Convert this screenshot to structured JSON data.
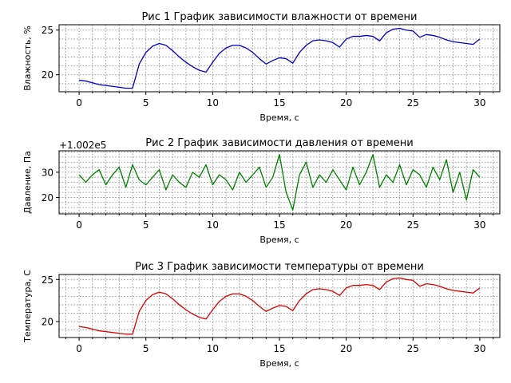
{
  "chart_data": [
    {
      "type": "line",
      "title": "Рис 1 График зависимости влажности от времени",
      "xlabel": "Время, с",
      "ylabel": "Влажность, %",
      "xlim": [
        -1.5,
        31.5
      ],
      "ylim": [
        18.1,
        25.6
      ],
      "xticks": [
        0,
        5,
        10,
        15,
        20,
        25,
        30
      ],
      "yticks": [
        20,
        25
      ],
      "grid": true,
      "color": "#0000cc",
      "series": [
        {
          "x": [
            0,
            0.5,
            1,
            1.5,
            2,
            2.5,
            3,
            3.5,
            4,
            4.5,
            5,
            5.5,
            6,
            6.5,
            7,
            7.5,
            8,
            8.5,
            9,
            9.5,
            10,
            10.5,
            11,
            11.5,
            12,
            12.5,
            13,
            13.5,
            14,
            14.5,
            15,
            15.5,
            16,
            16.5,
            17,
            17.5,
            18,
            18.5,
            19,
            19.5,
            20,
            20.5,
            21,
            21.5,
            22,
            22.5,
            23,
            23.5,
            24,
            24.5,
            25,
            25.5,
            26,
            26.5,
            27,
            27.5,
            28,
            28.5,
            29,
            29.5,
            30
          ],
          "y": [
            19.4,
            19.3,
            19.1,
            18.9,
            18.8,
            18.7,
            18.6,
            18.5,
            18.5,
            21.2,
            22.5,
            23.2,
            23.5,
            23.3,
            22.7,
            22.0,
            21.4,
            20.9,
            20.5,
            20.3,
            21.4,
            22.4,
            23.0,
            23.3,
            23.3,
            23.0,
            22.5,
            21.8,
            21.2,
            21.6,
            21.9,
            21.8,
            21.3,
            22.5,
            23.3,
            23.8,
            23.9,
            23.8,
            23.6,
            23.1,
            24.0,
            24.3,
            24.3,
            24.4,
            24.3,
            23.8,
            24.7,
            25.1,
            25.2,
            25.0,
            24.9,
            24.2,
            24.5,
            24.4,
            24.2,
            23.9,
            23.7,
            23.6,
            23.5,
            23.4,
            24.0
          ]
        }
      ]
    },
    {
      "type": "line",
      "title": "Рис 2 График зависимости давления от времени",
      "xlabel": "Время, с",
      "ylabel": "Давление, Па",
      "offset_label": "+1.002e5",
      "xlim": [
        -1.5,
        31.5
      ],
      "ylim": [
        13.5,
        38.5
      ],
      "xticks": [
        0,
        5,
        10,
        15,
        20,
        25,
        30
      ],
      "yticks": [
        20,
        30
      ],
      "grid": true,
      "color": "#008000",
      "series": [
        {
          "x": [
            0,
            0.5,
            1,
            1.5,
            2,
            2.5,
            3,
            3.5,
            4,
            4.5,
            5,
            5.5,
            6,
            6.5,
            7,
            7.5,
            8,
            8.5,
            9,
            9.5,
            10,
            10.5,
            11,
            11.5,
            12,
            12.5,
            13,
            13.5,
            14,
            14.5,
            15,
            15.5,
            16,
            16.5,
            17,
            17.5,
            18,
            18.5,
            19,
            19.5,
            20,
            20.5,
            21,
            21.5,
            22,
            22.5,
            23,
            23.5,
            24,
            24.5,
            25,
            25.5,
            26,
            26.5,
            27,
            27.5,
            28,
            28.5,
            29,
            29.5,
            30
          ],
          "y": [
            29,
            26,
            29,
            31,
            25,
            29,
            32,
            24,
            33,
            27,
            25,
            28,
            31,
            23,
            29,
            26,
            24,
            30,
            28,
            33,
            25,
            29,
            27,
            23,
            30,
            26,
            29,
            32,
            24,
            28,
            37,
            22,
            15,
            29,
            34,
            24,
            29,
            26,
            31,
            27,
            23,
            32,
            25,
            30,
            37,
            24,
            29,
            26,
            33,
            25,
            31,
            29,
            24,
            32,
            27,
            35,
            22,
            30,
            19,
            31,
            28
          ]
        }
      ]
    },
    {
      "type": "line",
      "title": "Рис 3 График зависимости температуры от времени",
      "xlabel": "Время, с",
      "ylabel": "Температура, С",
      "xlim": [
        -1.5,
        31.5
      ],
      "ylim": [
        18.1,
        25.6
      ],
      "xticks": [
        0,
        5,
        10,
        15,
        20,
        25,
        30
      ],
      "yticks": [
        20,
        25
      ],
      "grid": true,
      "color": "#dd0000",
      "series": [
        {
          "x": [
            0,
            0.5,
            1,
            1.5,
            2,
            2.5,
            3,
            3.5,
            4,
            4.5,
            5,
            5.5,
            6,
            6.5,
            7,
            7.5,
            8,
            8.5,
            9,
            9.5,
            10,
            10.5,
            11,
            11.5,
            12,
            12.5,
            13,
            13.5,
            14,
            14.5,
            15,
            15.5,
            16,
            16.5,
            17,
            17.5,
            18,
            18.5,
            19,
            19.5,
            20,
            20.5,
            21,
            21.5,
            22,
            22.5,
            23,
            23.5,
            24,
            24.5,
            25,
            25.5,
            26,
            26.5,
            27,
            27.5,
            28,
            28.5,
            29,
            29.5,
            30
          ],
          "y": [
            19.4,
            19.3,
            19.1,
            18.9,
            18.8,
            18.7,
            18.6,
            18.5,
            18.5,
            21.2,
            22.5,
            23.2,
            23.5,
            23.3,
            22.7,
            22.0,
            21.4,
            20.9,
            20.5,
            20.3,
            21.4,
            22.4,
            23.0,
            23.3,
            23.3,
            23.0,
            22.5,
            21.8,
            21.2,
            21.6,
            21.9,
            21.8,
            21.3,
            22.5,
            23.3,
            23.8,
            23.9,
            23.8,
            23.6,
            23.1,
            24.0,
            24.3,
            24.3,
            24.4,
            24.3,
            23.8,
            24.7,
            25.1,
            25.2,
            25.0,
            24.9,
            24.2,
            24.5,
            24.4,
            24.2,
            23.9,
            23.7,
            23.6,
            23.5,
            23.4,
            24.0
          ]
        }
      ]
    }
  ]
}
